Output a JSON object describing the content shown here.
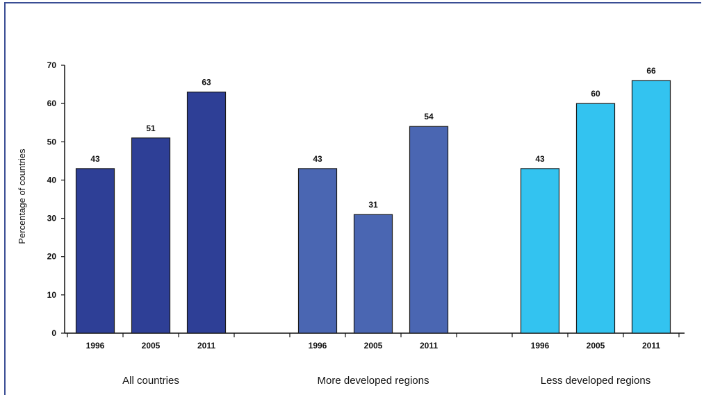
{
  "chart_data": {
    "type": "bar",
    "title": "",
    "ylabel": "Percentage of countries",
    "xlabel": "",
    "ylim": [
      0,
      70
    ],
    "yticks": [
      0,
      10,
      20,
      30,
      40,
      50,
      60,
      70
    ],
    "grid": false,
    "legend": "none",
    "groups": [
      {
        "name": "All countries",
        "color": "#2e3f96",
        "categories": [
          "1996",
          "2005",
          "2011"
        ],
        "values": [
          43,
          51,
          63
        ]
      },
      {
        "name": "More developed regions",
        "color": "#4a66b2",
        "categories": [
          "1996",
          "2005",
          "2011"
        ],
        "values": [
          43,
          31,
          54
        ]
      },
      {
        "name": "Less developed regions",
        "color": "#33c3f0",
        "categories": [
          "1996",
          "2005",
          "2011"
        ],
        "values": [
          43,
          60,
          66
        ]
      }
    ]
  }
}
